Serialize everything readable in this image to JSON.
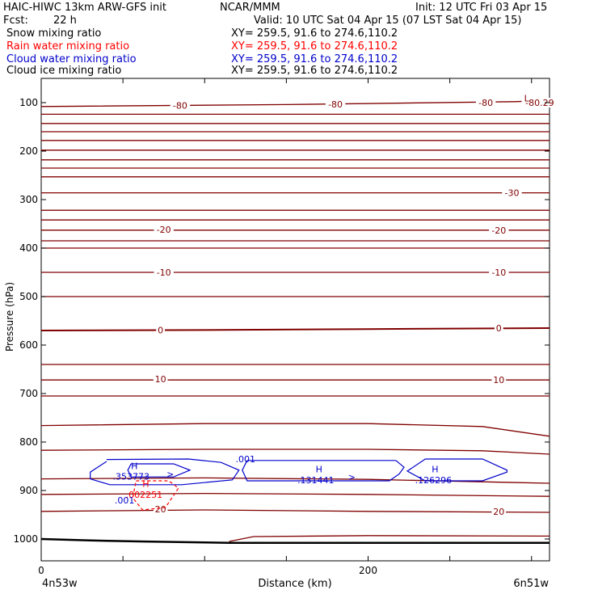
{
  "header": {
    "model": "HAIC-HIWC 13km ARW-GFS init",
    "org": "NCAR/MMM",
    "init": "Init: 12 UTC Fri 03 Apr 15",
    "fcst_label": "Fcst:",
    "fcst_value": "22 h",
    "valid": "Valid: 10 UTC Sat 04 Apr 15 (07 LST Sat 04 Apr 15)"
  },
  "fields": [
    {
      "name": "Snow mixing ratio",
      "xy": "XY= 259.5, 91.6 to 274.6,110.2",
      "color": "#000000"
    },
    {
      "name": "Rain water mixing ratio",
      "xy": "XY= 259.5, 91.6 to 274.6,110.2",
      "color": "#ff0000"
    },
    {
      "name": "Cloud water mixing ratio",
      "xy": "XY= 259.5, 91.6 to 274.6,110.2",
      "color": "#0000cc"
    },
    {
      "name": "Cloud ice mixing ratio",
      "xy": "XY= 259.5, 91.6 to 274.6,110.2",
      "color": "#000000"
    }
  ],
  "chart_data": {
    "type": "line",
    "xlabel": "Distance (km)",
    "ylabel": "Pressure (hPa)",
    "xlim": [
      0,
      311
    ],
    "ylim": [
      1045,
      50
    ],
    "x_ticks": [
      0,
      200
    ],
    "y_ticks": [
      100,
      200,
      300,
      400,
      500,
      600,
      700,
      800,
      900,
      1000
    ],
    "x_endpoints": {
      "left": "4n53w",
      "right": "6n51w"
    },
    "colors": {
      "temperature": "#800000",
      "cloud_water": "#0000cc",
      "rain": "#ff0000",
      "terrain": "#000000"
    },
    "temperature_isotherms": [
      {
        "label": "-80",
        "x": [
          0,
          150,
          290,
          311
        ],
        "p": [
          108,
          104,
          98,
          95
        ]
      },
      {
        "label": "",
        "x": [
          0,
          311
        ],
        "p": [
          124,
          124
        ]
      },
      {
        "label": "",
        "x": [
          0,
          311
        ],
        "p": [
          143,
          143
        ]
      },
      {
        "label": "",
        "x": [
          0,
          311
        ],
        "p": [
          160,
          160
        ]
      },
      {
        "label": "",
        "x": [
          0,
          311
        ],
        "p": [
          178,
          178
        ]
      },
      {
        "label": "",
        "x": [
          0,
          311
        ],
        "p": [
          198,
          198
        ]
      },
      {
        "label": "",
        "x": [
          0,
          311
        ],
        "p": [
          218,
          218
        ]
      },
      {
        "label": "",
        "x": [
          0,
          311
        ],
        "p": [
          235,
          235
        ]
      },
      {
        "label": "",
        "x": [
          0,
          311
        ],
        "p": [
          253,
          253
        ]
      },
      {
        "label": "-30",
        "x": [
          0,
          311
        ],
        "p": [
          286,
          286
        ]
      },
      {
        "label": "",
        "x": [
          0,
          311
        ],
        "p": [
          322,
          322
        ]
      },
      {
        "label": "",
        "x": [
          0,
          311
        ],
        "p": [
          342,
          342
        ]
      },
      {
        "label": "-20",
        "x": [
          0,
          311
        ],
        "p": [
          363,
          363
        ]
      },
      {
        "label": "",
        "x": [
          0,
          311
        ],
        "p": [
          385,
          385
        ]
      },
      {
        "label": "",
        "x": [
          0,
          311
        ],
        "p": [
          400,
          400
        ]
      },
      {
        "label": "-10",
        "x": [
          0,
          311
        ],
        "p": [
          450,
          450
        ]
      },
      {
        "label": "",
        "x": [
          0,
          311
        ],
        "p": [
          500,
          500
        ]
      },
      {
        "label": "0",
        "x": [
          0,
          100,
          200,
          311
        ],
        "p": [
          570,
          569,
          567,
          565
        ]
      },
      {
        "label": "",
        "x": [
          0,
          311
        ],
        "p": [
          640,
          640
        ]
      },
      {
        "label": "10",
        "x": [
          0,
          311
        ],
        "p": [
          672,
          672
        ]
      },
      {
        "label": "",
        "x": [
          0,
          311
        ],
        "p": [
          705,
          705
        ]
      },
      {
        "label": "",
        "x": [
          0,
          100,
          200,
          270,
          311
        ],
        "p": [
          766,
          762,
          762,
          768,
          788
        ]
      },
      {
        "label": "",
        "x": [
          0,
          100,
          200,
          270,
          311
        ],
        "p": [
          817,
          815,
          815,
          818,
          825
        ]
      },
      {
        "label": "",
        "x": [
          0,
          100,
          200,
          311
        ],
        "p": [
          876,
          874,
          877,
          885
        ]
      },
      {
        "label": "",
        "x": [
          0,
          100,
          200,
          311
        ],
        "p": [
          908,
          906,
          908,
          912
        ]
      },
      {
        "label": "20",
        "x": [
          0,
          100,
          200,
          311
        ],
        "p": [
          943,
          940,
          943,
          945
        ]
      },
      {
        "label": "",
        "x": [
          115,
          130,
          200,
          311
        ],
        "p": [
          1005,
          995,
          993,
          994
        ]
      }
    ],
    "isotherm_labels": [
      {
        "text": "-80",
        "x": 180,
        "p": 103
      },
      {
        "text": "-80",
        "x": 85,
        "p": 106
      },
      {
        "text": "-80",
        "x": 272,
        "p": 100
      },
      {
        "text": "-80.29",
        "x": 305,
        "p": 100
      },
      {
        "text": "-30",
        "x": 288,
        "p": 286
      },
      {
        "text": "-20",
        "x": 75,
        "p": 362
      },
      {
        "text": "-20",
        "x": 280,
        "p": 363
      },
      {
        "text": "-10",
        "x": 75,
        "p": 450
      },
      {
        "text": "-10",
        "x": 280,
        "p": 450
      },
      {
        "text": "0",
        "x": 73,
        "p": 569
      },
      {
        "text": "0",
        "x": 280,
        "p": 565
      },
      {
        "text": "10",
        "x": 73,
        "p": 670
      },
      {
        "text": "10",
        "x": 280,
        "p": 672
      },
      {
        "text": "20",
        "x": 73,
        "p": 938
      },
      {
        "text": "20",
        "x": 280,
        "p": 943
      }
    ],
    "cloud_water_contours": [
      {
        "x": [
          40,
          90,
          110,
          121,
          117,
          86,
          42,
          30,
          30,
          40
        ],
        "p": [
          836,
          835,
          842,
          858,
          878,
          888,
          888,
          876,
          862,
          840
        ]
      },
      {
        "x": [
          55,
          81,
          91,
          81,
          55,
          53,
          55
        ],
        "p": [
          845,
          845,
          858,
          872,
          872,
          858,
          845
        ]
      },
      {
        "x": [
          126,
          217,
          222,
          219,
          213,
          126,
          123,
          126
        ],
        "p": [
          838,
          838,
          852,
          866,
          880,
          880,
          858,
          838
        ]
      },
      {
        "x": [
          235,
          270,
          285,
          285,
          270,
          235,
          224,
          235
        ],
        "p": [
          835,
          835,
          858,
          862,
          880,
          880,
          860,
          835
        ]
      }
    ],
    "rain_contours": [
      {
        "x": [
          58,
          78,
          84,
          76,
          62,
          56,
          58
        ],
        "p": [
          880,
          880,
          895,
          935,
          940,
          915,
          880
        ]
      }
    ],
    "terrain": {
      "x": [
        0,
        30,
        60,
        100,
        115,
        200,
        311
      ],
      "p": [
        1000,
        1003,
        1005,
        1007,
        1008,
        1008,
        1008
      ]
    },
    "annotations": [
      {
        "text": "L",
        "x": 297,
        "p": 91,
        "color": "#800000"
      },
      {
        "text": "H",
        "x": 57,
        "p": 849,
        "color": "#0000cc"
      },
      {
        "text": ".353773",
        "x": 55,
        "p": 871,
        "color": "#0000cc"
      },
      {
        "text": ">",
        "x": 79,
        "p": 866,
        "color": "#0000cc"
      },
      {
        "text": "H",
        "x": 64,
        "p": 886,
        "color": "#ff0000"
      },
      {
        "text": ".002251",
        "x": 63,
        "p": 908,
        "color": "#ff0000"
      },
      {
        "text": ".001",
        "x": 51,
        "p": 920,
        "color": "#0000cc"
      },
      {
        "text": ".001",
        "x": 125,
        "p": 835,
        "color": "#0000cc"
      },
      {
        "text": "H",
        "x": 170,
        "p": 856,
        "color": "#0000cc"
      },
      {
        "text": ".131441",
        "x": 168,
        "p": 878,
        "color": "#0000cc"
      },
      {
        "text": ">",
        "x": 190,
        "p": 872,
        "color": "#0000cc"
      },
      {
        "text": "H",
        "x": 241,
        "p": 856,
        "color": "#0000cc"
      },
      {
        "text": ".126296",
        "x": 240,
        "p": 878,
        "color": "#0000cc"
      }
    ]
  }
}
